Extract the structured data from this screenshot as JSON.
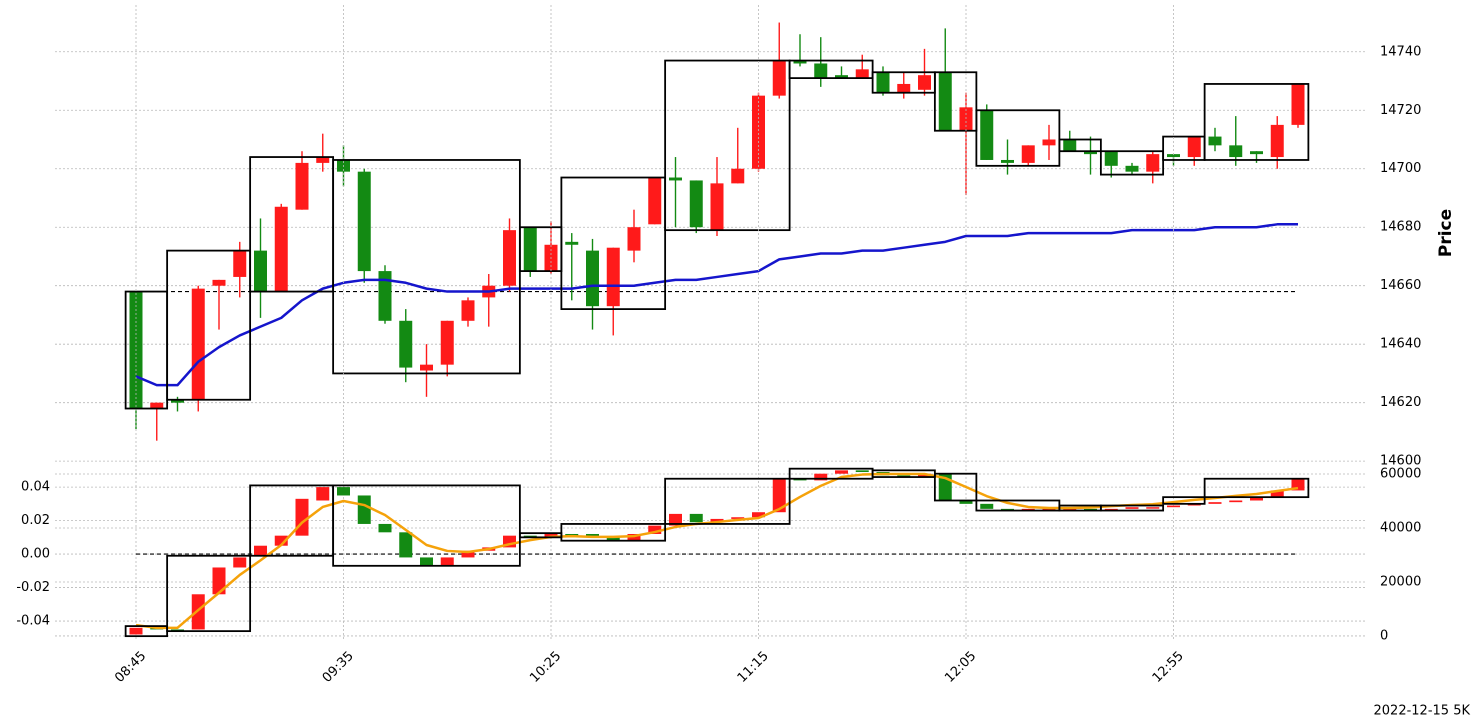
{
  "chart_data": [
    {
      "type": "candlestick",
      "ylabel": "Price",
      "annotation": "2022-12-15 5K",
      "ylim": [
        14598,
        14756
      ],
      "yticks": [
        14600,
        14620,
        14640,
        14660,
        14680,
        14700,
        14720,
        14740
      ],
      "grid": true,
      "up_color": "#ff1a1a",
      "down_color": "#138a13",
      "box_color": "#000000",
      "open": [
        14658,
        14618,
        14621,
        14621,
        14660,
        14663,
        14672,
        14658,
        14686,
        14702,
        14703,
        14699,
        14665,
        14648,
        14631,
        14633,
        14648,
        14656,
        14660,
        14680,
        14665,
        14675,
        14672,
        14653,
        14672,
        14681,
        14697,
        14696,
        14679,
        14695,
        14700,
        14725,
        14737,
        14736,
        14732,
        14731,
        14733,
        14726,
        14727,
        14733,
        14713,
        14720,
        14703,
        14702,
        14708,
        14710,
        14706,
        14706,
        14701,
        14699,
        14705,
        14704,
        14711,
        14708,
        14706,
        14704,
        14715
      ],
      "high": [
        14658,
        14620,
        14622,
        14660,
        14662,
        14675,
        14683,
        14688,
        14706,
        14712,
        14708,
        14700,
        14667,
        14652,
        14640,
        14648,
        14656,
        14664,
        14683,
        14680,
        14682,
        14678,
        14676,
        14673,
        14686,
        14697,
        14704,
        14696,
        14704,
        14714,
        14726,
        14750,
        14746,
        14745,
        14735,
        14739,
        14735,
        14733,
        14741,
        14748,
        14726,
        14722,
        14710,
        14708,
        14715,
        14713,
        14711,
        14706,
        14702,
        14706,
        14705,
        14711,
        14714,
        14718,
        14706,
        14718,
        14729
      ],
      "low": [
        14611,
        14607,
        14617,
        14617,
        14645,
        14656,
        14649,
        14658,
        14686,
        14699,
        14694,
        14661,
        14647,
        14627,
        14622,
        14629,
        14646,
        14646,
        14658,
        14663,
        14664,
        14655,
        14645,
        14643,
        14668,
        14681,
        14680,
        14678,
        14677,
        14695,
        14699,
        14724,
        14735,
        14728,
        14731,
        14731,
        14725,
        14724,
        14725,
        14713,
        14691,
        14703,
        14698,
        14701,
        14703,
        14706,
        14698,
        14697,
        14698,
        14695,
        14701,
        14701,
        14706,
        14701,
        14702,
        14700,
        14714
      ],
      "close": [
        14618,
        14620,
        14620,
        14659,
        14662,
        14672,
        14658,
        14687,
        14702,
        14704,
        14699,
        14665,
        14648,
        14632,
        14633,
        14648,
        14655,
        14660,
        14679,
        14665,
        14674,
        14674,
        14653,
        14673,
        14680,
        14697,
        14696,
        14680,
        14695,
        14700,
        14725,
        14737,
        14736,
        14731,
        14731,
        14734,
        14726,
        14729,
        14732,
        14713,
        14721,
        14703,
        14702,
        14708,
        14710,
        14706,
        14705,
        14701,
        14699,
        14705,
        14704,
        14711,
        14708,
        14704,
        14705,
        14715,
        14729
      ],
      "series": [
        {
          "color": "#1515cc",
          "values": [
            14629,
            14626,
            14626,
            14634,
            14639,
            14643,
            14646,
            14649,
            14655,
            14659,
            14661,
            14662,
            14662,
            14661,
            14659,
            14658,
            14658,
            14658,
            14659,
            14659,
            14659,
            14659,
            14660,
            14660,
            14660,
            14661,
            14662,
            14662,
            14663,
            14664,
            14665,
            14669,
            14670,
            14671,
            14671,
            14672,
            14672,
            14673,
            14674,
            14675,
            14677,
            14677,
            14677,
            14678,
            14678,
            14678,
            14678,
            14678,
            14679,
            14679,
            14679,
            14679,
            14680,
            14680,
            14680,
            14681,
            14681
          ]
        }
      ],
      "hline": 14658,
      "boxes": [
        {
          "first": 0,
          "last": 1,
          "high": 14658,
          "low": 14618
        },
        {
          "first": 2,
          "last": 5,
          "high": 14672,
          "low": 14621
        },
        {
          "first": 6,
          "last": 9,
          "high": 14704,
          "low": 14658
        },
        {
          "first": 10,
          "last": 18,
          "high": 14703,
          "low": 14630
        },
        {
          "first": 19,
          "last": 20,
          "high": 14680,
          "low": 14665
        },
        {
          "first": 21,
          "last": 25,
          "high": 14697,
          "low": 14652
        },
        {
          "first": 26,
          "last": 31,
          "high": 14737,
          "low": 14679
        },
        {
          "first": 32,
          "last": 35,
          "high": 14737,
          "low": 14731
        },
        {
          "first": 36,
          "last": 38,
          "high": 14733,
          "low": 14726
        },
        {
          "first": 39,
          "last": 40,
          "high": 14733,
          "low": 14713
        },
        {
          "first": 41,
          "last": 44,
          "high": 14720,
          "low": 14701
        },
        {
          "first": 45,
          "last": 46,
          "high": 14710,
          "low": 14706
        },
        {
          "first": 47,
          "last": 49,
          "high": 14706,
          "low": 14698
        },
        {
          "first": 50,
          "last": 51,
          "high": 14711,
          "low": 14703
        },
        {
          "first": 52,
          "last": 56,
          "high": 14729,
          "low": 14703
        }
      ]
    },
    {
      "type": "candlestick",
      "categories": [
        "08:45",
        null,
        null,
        null,
        null,
        null,
        null,
        null,
        null,
        null,
        "09:35",
        null,
        null,
        null,
        null,
        null,
        null,
        null,
        null,
        null,
        "10:25",
        null,
        null,
        null,
        null,
        null,
        null,
        null,
        null,
        null,
        "11:15",
        null,
        null,
        null,
        null,
        null,
        null,
        null,
        null,
        null,
        "12:05",
        null,
        null,
        null,
        null,
        null,
        null,
        null,
        null,
        null,
        "12:55",
        null,
        null,
        null,
        null,
        null,
        null
      ],
      "ylim": [
        -0.0513,
        0.052
      ],
      "yticks": [
        -0.04,
        -0.02,
        {
          "value": 0,
          "label": "0.00"
        },
        0.02,
        0.04
      ],
      "y2lim": [
        -1500,
        62600
      ],
      "y2ticks": [
        0,
        20000,
        40000,
        60000
      ],
      "grid": true,
      "up_color": "#ff1a1a",
      "down_color": "#138a13",
      "box_color": "#000000",
      "open": [
        -0.048,
        -0.044,
        -0.045,
        -0.045,
        -0.024,
        -0.008,
        -0.001,
        0.005,
        0.011,
        0.032,
        0.04,
        0.035,
        0.018,
        0.013,
        -0.002,
        -0.007,
        -0.002,
        0.002,
        0.004,
        0.011,
        0.01,
        0.012,
        0.012,
        0.01,
        0.008,
        0.012,
        0.017,
        0.024,
        0.019,
        0.021,
        0.022,
        0.025,
        0.045,
        0.044,
        0.048,
        0.05,
        0.049,
        0.047,
        0.046,
        0.048,
        0.032,
        0.03,
        0.027,
        0.026,
        0.027,
        0.027,
        0.027,
        0.027,
        0.027,
        0.028,
        0.028,
        0.029,
        0.03,
        0.031,
        0.032,
        0.034,
        0.038
      ],
      "close": [
        -0.044,
        -0.045,
        -0.046,
        -0.024,
        -0.008,
        -0.002,
        0.005,
        0.011,
        0.033,
        0.04,
        0.035,
        0.018,
        0.013,
        -0.002,
        -0.007,
        -0.002,
        0.002,
        0.004,
        0.011,
        0.01,
        0.012,
        0.011,
        0.01,
        0.008,
        0.012,
        0.017,
        0.024,
        0.019,
        0.021,
        0.022,
        0.025,
        0.045,
        0.044,
        0.048,
        0.05,
        0.049,
        0.047,
        0.046,
        0.048,
        0.032,
        0.03,
        0.027,
        0.026,
        0.027,
        0.027,
        0.027,
        0.026,
        0.027,
        0.028,
        0.028,
        0.029,
        0.03,
        0.031,
        0.032,
        0.034,
        0.038,
        0.045
      ],
      "series": [
        {
          "color": "#f5a20a",
          "axis": "y2",
          "values": [
            4000,
            3000,
            3000,
            9600,
            16000,
            22600,
            28000,
            33700,
            42000,
            47800,
            50000,
            48500,
            44800,
            39300,
            33700,
            31500,
            31100,
            32200,
            34000,
            35500,
            36700,
            37000,
            36700,
            36700,
            37000,
            38500,
            40400,
            41500,
            42200,
            43000,
            43700,
            47000,
            51500,
            55600,
            58900,
            59800,
            60000,
            60000,
            60000,
            58500,
            55200,
            51800,
            49300,
            47800,
            47400,
            47400,
            47600,
            48100,
            48500,
            48800,
            49600,
            50400,
            51100,
            51900,
            52600,
            53700,
            54800
          ]
        }
      ],
      "hline": 0,
      "boxes": [
        {
          "first": 0,
          "last": 1,
          "high": -0.043,
          "low": -0.049
        },
        {
          "first": 2,
          "last": 5,
          "high": -0.001,
          "low": -0.046
        },
        {
          "first": 6,
          "last": 9,
          "high": 0.041,
          "low": -0.001
        },
        {
          "first": 10,
          "last": 18,
          "high": 0.041,
          "low": -0.007
        },
        {
          "first": 19,
          "last": 20,
          "high": 0.0125,
          "low": 0.01
        },
        {
          "first": 21,
          "last": 25,
          "high": 0.018,
          "low": 0.008
        },
        {
          "first": 26,
          "last": 31,
          "high": 0.045,
          "low": 0.018
        },
        {
          "first": 32,
          "last": 35,
          "high": 0.051,
          "low": 0.045
        },
        {
          "first": 36,
          "last": 38,
          "high": 0.05,
          "low": 0.046
        },
        {
          "first": 39,
          "last": 40,
          "high": 0.048,
          "low": 0.032
        },
        {
          "first": 41,
          "last": 44,
          "high": 0.032,
          "low": 0.026
        },
        {
          "first": 45,
          "last": 46,
          "high": 0.029,
          "low": 0.026
        },
        {
          "first": 47,
          "last": 49,
          "high": 0.029,
          "low": 0.026
        },
        {
          "first": 50,
          "last": 51,
          "high": 0.034,
          "low": 0.03
        },
        {
          "first": 52,
          "last": 56,
          "high": 0.045,
          "low": 0.034
        }
      ]
    }
  ]
}
